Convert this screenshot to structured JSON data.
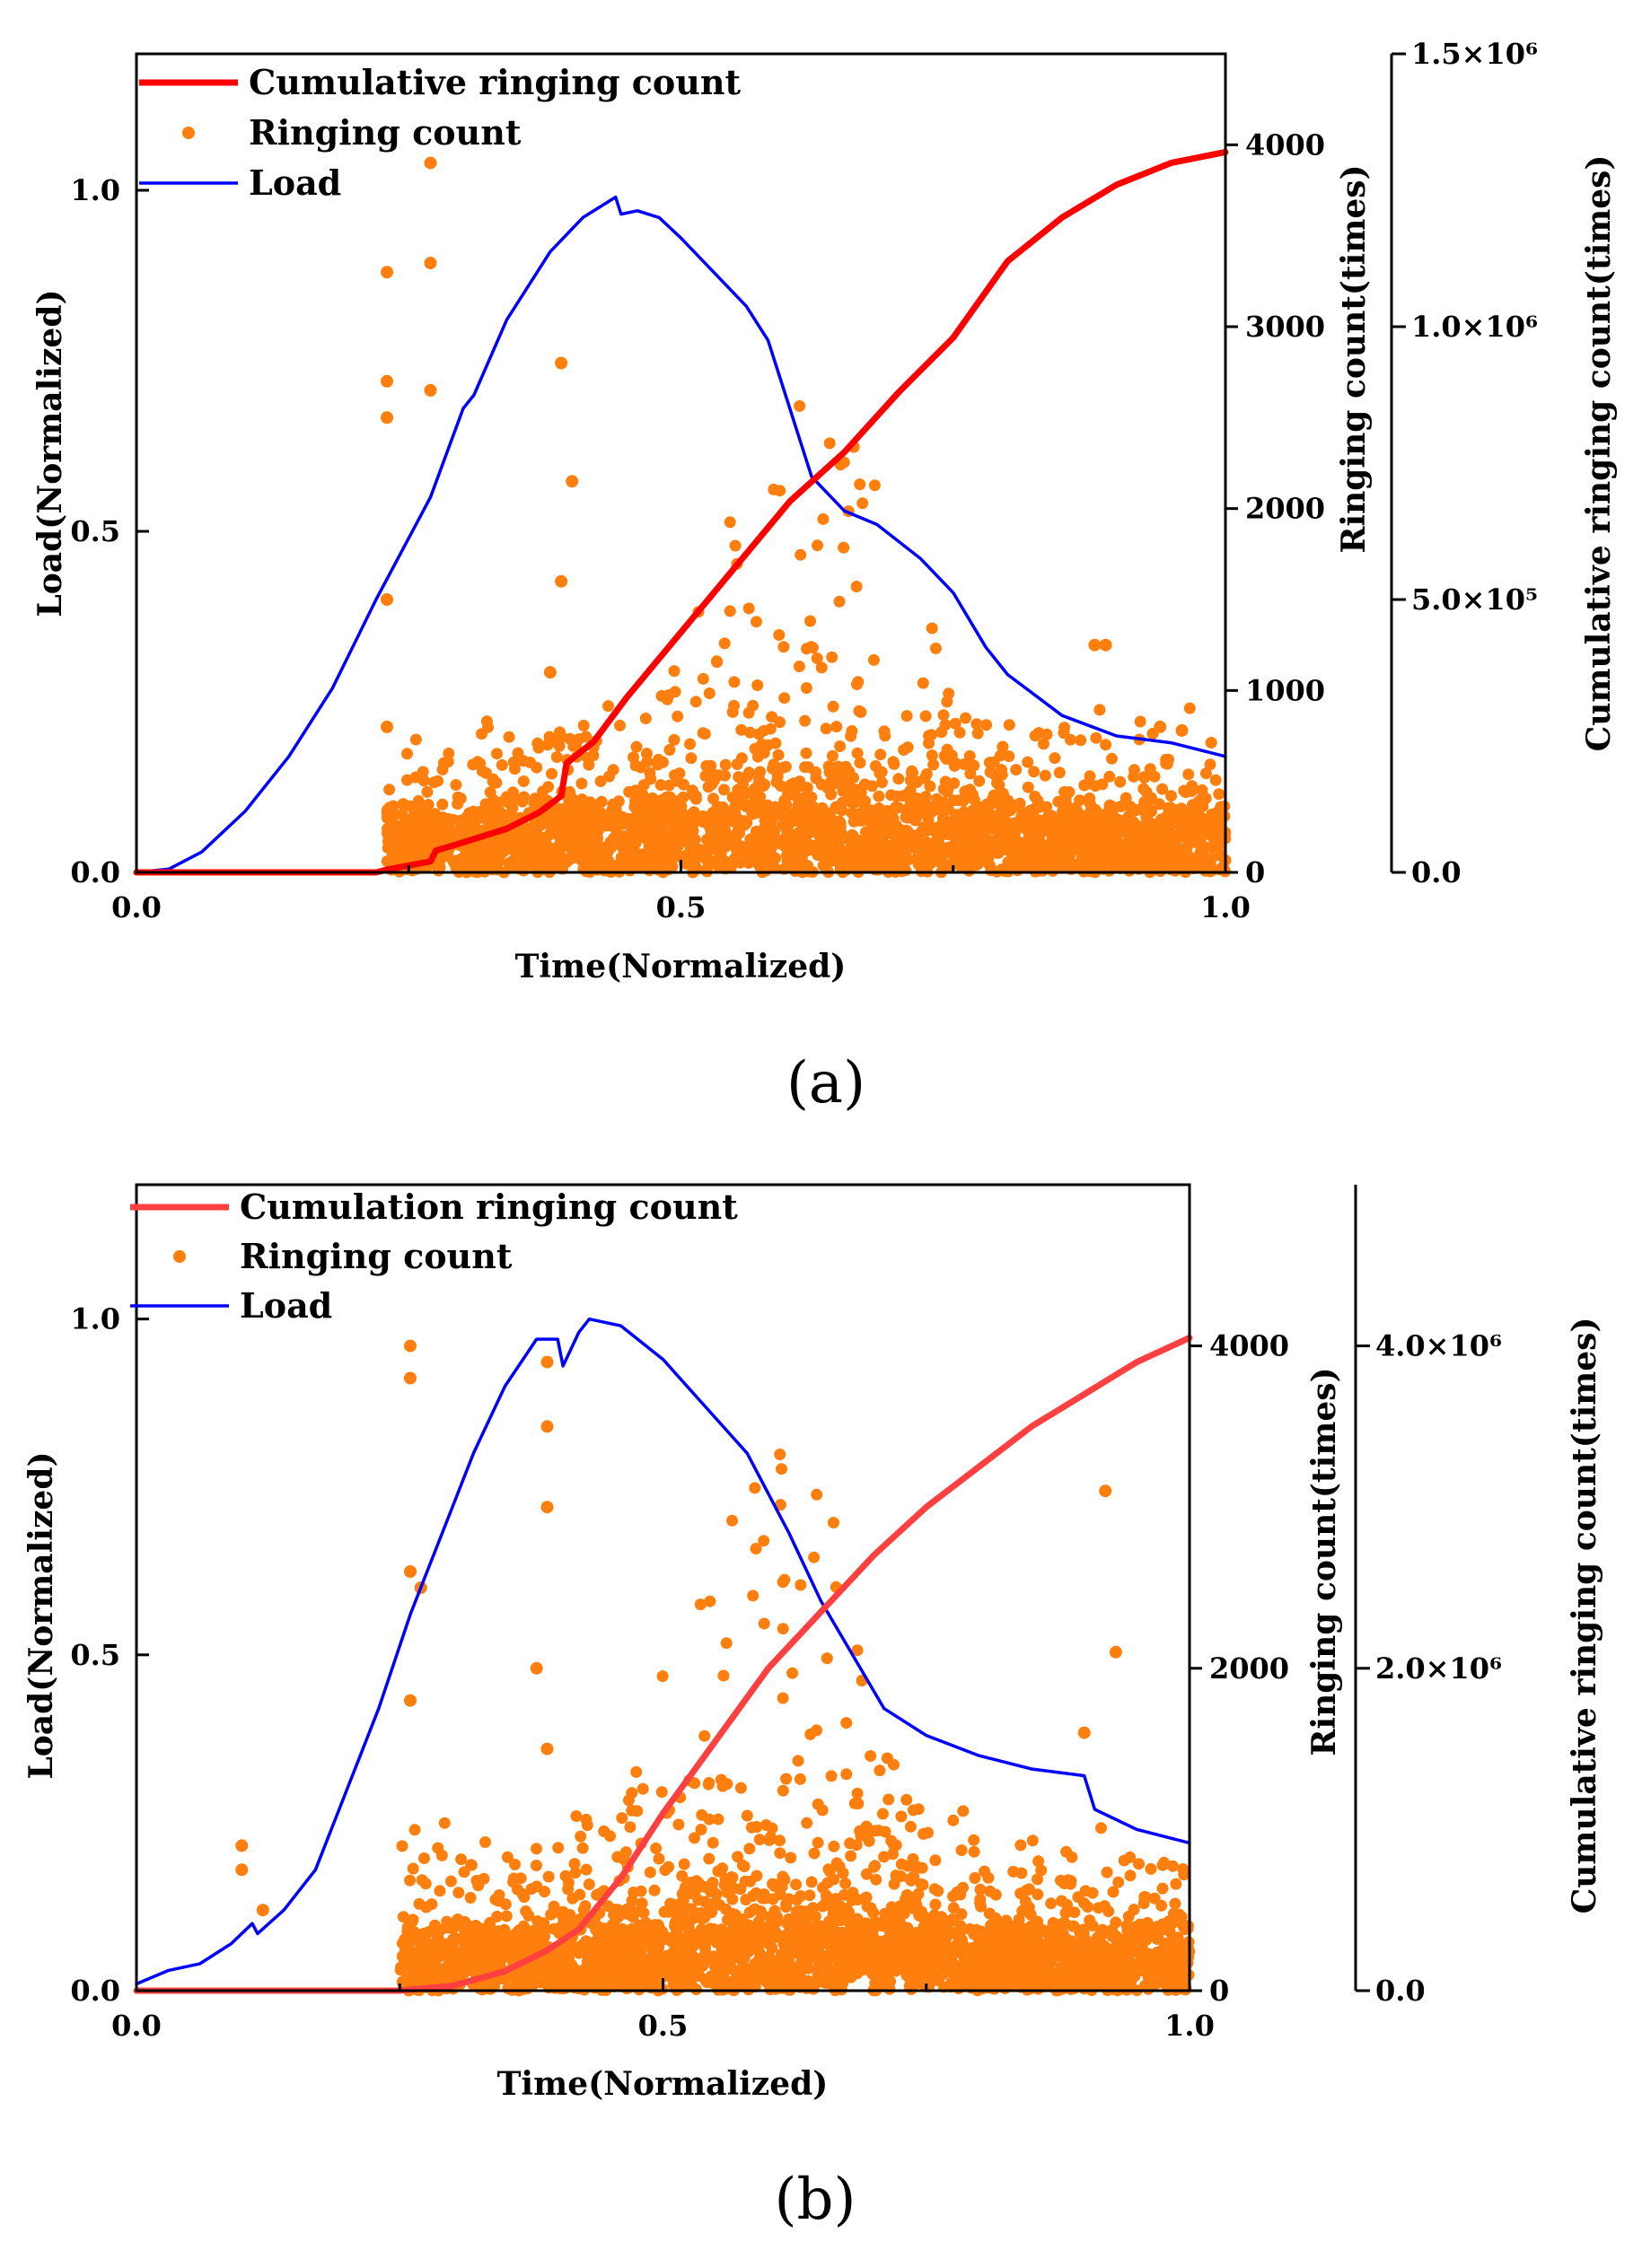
{
  "chart_data": [
    {
      "type": "line",
      "panel_label": "(a)",
      "xlabel": "Time(Normalized)",
      "ylabel_left": "Load(Normalized)",
      "ylabel_mid": "Ringing count(times)",
      "ylabel_right": "Cumulative ringing count(times)",
      "xlim": [
        0,
        1
      ],
      "ylim_left": [
        0,
        1.2
      ],
      "ylim_mid": [
        0,
        4500
      ],
      "ylim_right": [
        0,
        1500000
      ],
      "x_ticks": [
        "0.0",
        "0.5",
        "1.0"
      ],
      "left_ticks": [
        "0.0",
        "0.5",
        "1.0"
      ],
      "mid_ticks": [
        "0",
        "1000",
        "2000",
        "3000",
        "4000"
      ],
      "right_ticks": [
        {
          "value": 0,
          "label": "0.0"
        },
        {
          "value": 500000,
          "label": "5.0×10⁵"
        },
        {
          "value": 1000000,
          "label": "1.0×10⁶"
        },
        {
          "value": 1500000,
          "label": "1.5×10⁶"
        }
      ],
      "legend": [
        {
          "label": "Cumulative ringing count",
          "color": "#ff0000",
          "kind": "line"
        },
        {
          "label": "Ringing count",
          "color": "#ff7f0e",
          "kind": "dot"
        },
        {
          "label": "Load",
          "color": "#0000ff",
          "kind": "line"
        }
      ],
      "series": [
        {
          "name": "Load",
          "axis": "left",
          "color": "#0000ff",
          "points": [
            [
              0.0,
              0.0
            ],
            [
              0.03,
              0.005
            ],
            [
              0.06,
              0.03
            ],
            [
              0.1,
              0.09
            ],
            [
              0.14,
              0.17
            ],
            [
              0.18,
              0.27
            ],
            [
              0.22,
              0.4
            ],
            [
              0.26,
              0.52
            ],
            [
              0.27,
              0.55
            ],
            [
              0.3,
              0.68
            ],
            [
              0.31,
              0.7
            ],
            [
              0.34,
              0.81
            ],
            [
              0.38,
              0.91
            ],
            [
              0.41,
              0.96
            ],
            [
              0.44,
              0.99
            ],
            [
              0.445,
              0.965
            ],
            [
              0.46,
              0.97
            ],
            [
              0.48,
              0.96
            ],
            [
              0.5,
              0.93
            ],
            [
              0.53,
              0.88
            ],
            [
              0.56,
              0.83
            ],
            [
              0.58,
              0.78
            ],
            [
              0.6,
              0.68
            ],
            [
              0.62,
              0.58
            ],
            [
              0.65,
              0.53
            ],
            [
              0.68,
              0.51
            ],
            [
              0.72,
              0.46
            ],
            [
              0.75,
              0.41
            ],
            [
              0.78,
              0.33
            ],
            [
              0.8,
              0.29
            ],
            [
              0.85,
              0.23
            ],
            [
              0.9,
              0.2
            ],
            [
              0.95,
              0.19
            ],
            [
              1.0,
              0.17
            ]
          ]
        },
        {
          "name": "Cumulative ringing count",
          "axis": "right",
          "color": "#ff0000",
          "points": [
            [
              0.0,
              0
            ],
            [
              0.22,
              0
            ],
            [
              0.23,
              5000
            ],
            [
              0.27,
              20000
            ],
            [
              0.275,
              40000
            ],
            [
              0.3,
              55000
            ],
            [
              0.34,
              80000
            ],
            [
              0.37,
              110000
            ],
            [
              0.39,
              140000
            ],
            [
              0.395,
              200000
            ],
            [
              0.42,
              240000
            ],
            [
              0.45,
              320000
            ],
            [
              0.5,
              440000
            ],
            [
              0.55,
              560000
            ],
            [
              0.6,
              680000
            ],
            [
              0.65,
              770000
            ],
            [
              0.7,
              880000
            ],
            [
              0.75,
              980000
            ],
            [
              0.8,
              1120000
            ],
            [
              0.85,
              1200000
            ],
            [
              0.9,
              1260000
            ],
            [
              0.95,
              1300000
            ],
            [
              1.0,
              1320000
            ]
          ]
        }
      ],
      "ringing_count": {
        "axis": "mid",
        "color": "#ff7f0e",
        "start": 0.23,
        "end": 1.0,
        "mid_center": 0.62,
        "mid_band_max": 2400,
        "outliers": [
          [
            0.23,
            3300
          ],
          [
            0.23,
            2700
          ],
          [
            0.23,
            2500
          ],
          [
            0.23,
            1500
          ],
          [
            0.23,
            800
          ],
          [
            0.27,
            3900
          ],
          [
            0.27,
            3350
          ],
          [
            0.27,
            2650
          ],
          [
            0.39,
            2800
          ],
          [
            0.4,
            2150
          ],
          [
            0.39,
            1600
          ],
          [
            0.38,
            1100
          ],
          [
            0.88,
            1250
          ],
          [
            0.89,
            1250
          ],
          [
            0.94,
            800
          ],
          [
            0.96,
            780
          ]
        ]
      }
    },
    {
      "type": "line",
      "panel_label": "(b)",
      "xlabel": "Time(Normalized)",
      "ylabel_left": "Load(Normalized)",
      "ylabel_mid": "Ringing count(times)",
      "ylabel_right": "Cumulative ringing count(times)",
      "xlim": [
        0,
        1
      ],
      "ylim_left": [
        0,
        1.2
      ],
      "ylim_mid": [
        0,
        5000
      ],
      "ylim_right": [
        0,
        5000000
      ],
      "x_ticks": [
        "0.0",
        "0.5",
        "1.0"
      ],
      "left_ticks": [
        "0.0",
        "0.5",
        "1.0"
      ],
      "mid_ticks": [
        "0",
        "2000",
        "4000"
      ],
      "right_ticks": [
        {
          "value": 0,
          "label": "0.0"
        },
        {
          "value": 2000000,
          "label": "2.0×10⁶"
        },
        {
          "value": 4000000,
          "label": "4.0×10⁶"
        }
      ],
      "legend": [
        {
          "label": "Cumulation ringing count",
          "color": "#ff4040",
          "kind": "line"
        },
        {
          "label": "Ringing count",
          "color": "#ff7f0e",
          "kind": "dot"
        },
        {
          "label": "Load",
          "color": "#0000ff",
          "kind": "line"
        }
      ],
      "series": [
        {
          "name": "Load",
          "axis": "left",
          "color": "#0000ff",
          "points": [
            [
              0.0,
              0.01
            ],
            [
              0.03,
              0.03
            ],
            [
              0.06,
              0.04
            ],
            [
              0.09,
              0.07
            ],
            [
              0.11,
              0.1
            ],
            [
              0.115,
              0.085
            ],
            [
              0.14,
              0.12
            ],
            [
              0.17,
              0.18
            ],
            [
              0.2,
              0.3
            ],
            [
              0.23,
              0.42
            ],
            [
              0.26,
              0.56
            ],
            [
              0.27,
              0.6
            ],
            [
              0.29,
              0.68
            ],
            [
              0.32,
              0.8
            ],
            [
              0.35,
              0.9
            ],
            [
              0.38,
              0.97
            ],
            [
              0.4,
              0.97
            ],
            [
              0.405,
              0.93
            ],
            [
              0.42,
              0.98
            ],
            [
              0.43,
              1.0
            ],
            [
              0.46,
              0.99
            ],
            [
              0.5,
              0.94
            ],
            [
              0.54,
              0.87
            ],
            [
              0.58,
              0.8
            ],
            [
              0.6,
              0.74
            ],
            [
              0.62,
              0.68
            ],
            [
              0.65,
              0.58
            ],
            [
              0.68,
              0.5
            ],
            [
              0.71,
              0.42
            ],
            [
              0.75,
              0.38
            ],
            [
              0.8,
              0.35
            ],
            [
              0.85,
              0.33
            ],
            [
              0.9,
              0.32
            ],
            [
              0.91,
              0.27
            ],
            [
              0.95,
              0.24
            ],
            [
              1.0,
              0.22
            ]
          ]
        },
        {
          "name": "Cumulation ringing count",
          "axis": "right",
          "color": "#ff4040",
          "points": [
            [
              0.0,
              0
            ],
            [
              0.25,
              0
            ],
            [
              0.3,
              30000
            ],
            [
              0.35,
              120000
            ],
            [
              0.39,
              250000
            ],
            [
              0.42,
              380000
            ],
            [
              0.46,
              700000
            ],
            [
              0.5,
              1100000
            ],
            [
              0.55,
              1550000
            ],
            [
              0.6,
              2000000
            ],
            [
              0.65,
              2350000
            ],
            [
              0.7,
              2700000
            ],
            [
              0.75,
              3000000
            ],
            [
              0.8,
              3250000
            ],
            [
              0.85,
              3500000
            ],
            [
              0.9,
              3700000
            ],
            [
              0.95,
              3900000
            ],
            [
              1.0,
              4050000
            ]
          ]
        }
      ],
      "ringing_count": {
        "axis": "mid",
        "color": "#ff7f0e",
        "start": 0.25,
        "end": 1.0,
        "mid_center": 0.6,
        "mid_band_max": 3300,
        "outliers": [
          [
            0.1,
            900
          ],
          [
            0.1,
            750
          ],
          [
            0.12,
            500
          ],
          [
            0.26,
            4000
          ],
          [
            0.26,
            3800
          ],
          [
            0.26,
            2600
          ],
          [
            0.26,
            1800
          ],
          [
            0.27,
            2500
          ],
          [
            0.39,
            3900
          ],
          [
            0.39,
            3500
          ],
          [
            0.39,
            3000
          ],
          [
            0.38,
            2000
          ],
          [
            0.39,
            1500
          ],
          [
            0.9,
            1600
          ],
          [
            0.92,
            3100
          ],
          [
            0.93,
            2100
          ]
        ]
      }
    }
  ]
}
